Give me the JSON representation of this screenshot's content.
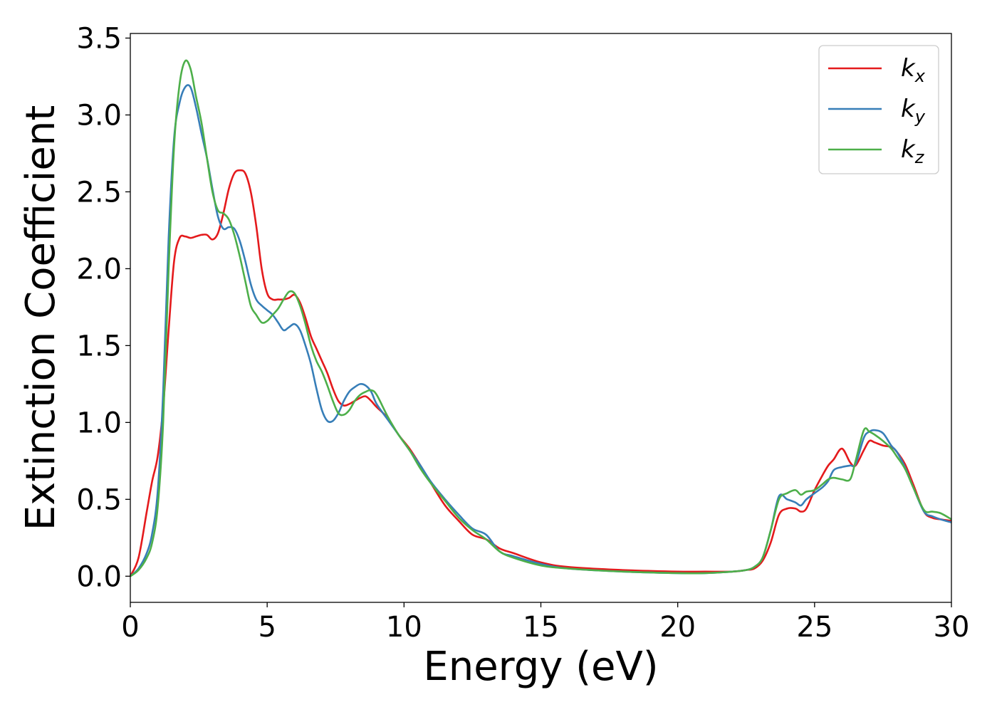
{
  "chart_data": {
    "type": "line",
    "xlabel": "Energy (eV)",
    "ylabel": "Extinction Coefficient",
    "xlim": [
      0,
      30
    ],
    "ylim": [
      -0.17,
      3.53
    ],
    "xticks": [
      0,
      5,
      10,
      15,
      20,
      25,
      30
    ],
    "yticks": [
      0.0,
      0.5,
      1.0,
      1.5,
      2.0,
      2.5,
      3.0,
      3.5
    ],
    "grid": false,
    "legend_position": "top-right",
    "series": [
      {
        "name": "k",
        "subscript": "x",
        "color": "#e41a1c",
        "x": [
          0,
          0.3,
          0.6,
          0.8,
          1.0,
          1.2,
          1.4,
          1.6,
          1.8,
          2.0,
          2.2,
          2.4,
          2.6,
          2.8,
          3.0,
          3.2,
          3.4,
          3.6,
          3.8,
          4.0,
          4.2,
          4.4,
          4.6,
          4.8,
          5.0,
          5.2,
          5.4,
          5.6,
          5.8,
          6.0,
          6.2,
          6.4,
          6.6,
          6.8,
          7.0,
          7.2,
          7.4,
          7.6,
          7.8,
          8.0,
          8.2,
          8.4,
          8.6,
          8.8,
          9.0,
          9.4,
          9.8,
          10.2,
          10.6,
          11.0,
          11.5,
          12.0,
          12.5,
          13.0,
          13.5,
          14.0,
          15.0,
          16.0,
          18.0,
          20.0,
          21.0,
          22.0,
          22.5,
          22.8,
          23.1,
          23.4,
          23.7,
          24.0,
          24.3,
          24.5,
          24.7,
          25.0,
          25.3,
          25.5,
          25.7,
          26.0,
          26.3,
          26.5,
          26.8,
          27.0,
          27.2,
          27.5,
          27.8,
          28.0,
          28.3,
          28.6,
          29.0,
          29.3,
          29.6,
          30.0
        ],
        "y": [
          0.0,
          0.12,
          0.42,
          0.62,
          0.78,
          1.1,
          1.6,
          2.05,
          2.2,
          2.21,
          2.2,
          2.21,
          2.22,
          2.22,
          2.19,
          2.23,
          2.36,
          2.52,
          2.62,
          2.64,
          2.62,
          2.5,
          2.28,
          2.0,
          1.84,
          1.8,
          1.8,
          1.8,
          1.81,
          1.83,
          1.78,
          1.68,
          1.56,
          1.48,
          1.4,
          1.32,
          1.22,
          1.14,
          1.11,
          1.12,
          1.14,
          1.16,
          1.17,
          1.14,
          1.1,
          1.03,
          0.92,
          0.83,
          0.72,
          0.6,
          0.46,
          0.36,
          0.27,
          0.24,
          0.18,
          0.15,
          0.09,
          0.06,
          0.04,
          0.03,
          0.03,
          0.03,
          0.04,
          0.05,
          0.1,
          0.22,
          0.4,
          0.44,
          0.44,
          0.42,
          0.44,
          0.56,
          0.66,
          0.72,
          0.76,
          0.83,
          0.74,
          0.72,
          0.82,
          0.88,
          0.87,
          0.85,
          0.84,
          0.81,
          0.73,
          0.6,
          0.42,
          0.38,
          0.37,
          0.36
        ]
      },
      {
        "name": "k",
        "subscript": "y",
        "color": "#377eb8",
        "x": [
          0,
          0.3,
          0.6,
          0.8,
          1.0,
          1.2,
          1.4,
          1.6,
          1.8,
          2.0,
          2.2,
          2.4,
          2.6,
          2.8,
          3.0,
          3.2,
          3.4,
          3.6,
          3.8,
          4.0,
          4.2,
          4.4,
          4.6,
          4.8,
          5.0,
          5.2,
          5.4,
          5.6,
          5.8,
          6.0,
          6.2,
          6.4,
          6.6,
          6.8,
          7.0,
          7.2,
          7.4,
          7.6,
          7.8,
          8.0,
          8.2,
          8.4,
          8.6,
          8.8,
          9.0,
          9.4,
          9.8,
          10.2,
          10.6,
          11.0,
          11.5,
          12.0,
          12.5,
          13.0,
          13.5,
          14.0,
          15.0,
          16.0,
          18.0,
          20.0,
          21.0,
          22.0,
          22.5,
          22.8,
          23.1,
          23.4,
          23.7,
          24.0,
          24.3,
          24.5,
          24.7,
          25.0,
          25.3,
          25.5,
          25.7,
          26.0,
          26.3,
          26.5,
          26.8,
          27.0,
          27.2,
          27.5,
          27.8,
          28.0,
          28.3,
          28.6,
          29.0,
          29.3,
          29.6,
          30.0
        ],
        "y": [
          0.0,
          0.05,
          0.15,
          0.28,
          0.55,
          1.2,
          2.2,
          2.85,
          3.08,
          3.18,
          3.18,
          3.05,
          2.88,
          2.72,
          2.52,
          2.34,
          2.26,
          2.27,
          2.26,
          2.18,
          2.05,
          1.9,
          1.8,
          1.76,
          1.73,
          1.7,
          1.65,
          1.6,
          1.62,
          1.64,
          1.6,
          1.5,
          1.38,
          1.22,
          1.08,
          1.01,
          1.01,
          1.06,
          1.14,
          1.2,
          1.23,
          1.25,
          1.24,
          1.2,
          1.12,
          1.02,
          0.92,
          0.82,
          0.72,
          0.61,
          0.5,
          0.4,
          0.31,
          0.27,
          0.16,
          0.13,
          0.08,
          0.05,
          0.03,
          0.02,
          0.02,
          0.03,
          0.04,
          0.06,
          0.12,
          0.3,
          0.52,
          0.5,
          0.48,
          0.46,
          0.5,
          0.54,
          0.58,
          0.62,
          0.69,
          0.71,
          0.72,
          0.73,
          0.9,
          0.94,
          0.95,
          0.93,
          0.85,
          0.81,
          0.71,
          0.58,
          0.42,
          0.39,
          0.37,
          0.35
        ]
      },
      {
        "name": "k",
        "subscript": "z",
        "color": "#4daf4a",
        "x": [
          0,
          0.3,
          0.6,
          0.8,
          1.0,
          1.2,
          1.4,
          1.6,
          1.8,
          2.0,
          2.2,
          2.4,
          2.6,
          2.8,
          3.0,
          3.2,
          3.4,
          3.6,
          3.8,
          4.0,
          4.2,
          4.4,
          4.6,
          4.8,
          5.0,
          5.2,
          5.4,
          5.6,
          5.8,
          6.0,
          6.2,
          6.4,
          6.6,
          6.8,
          7.0,
          7.2,
          7.4,
          7.6,
          7.8,
          8.0,
          8.2,
          8.4,
          8.6,
          8.8,
          9.0,
          9.4,
          9.8,
          10.2,
          10.6,
          11.0,
          11.5,
          12.0,
          12.5,
          13.0,
          13.5,
          14.0,
          15.0,
          16.0,
          18.0,
          20.0,
          21.0,
          22.0,
          22.5,
          22.8,
          23.1,
          23.4,
          23.7,
          24.0,
          24.3,
          24.5,
          24.7,
          25.0,
          25.3,
          25.5,
          25.7,
          26.0,
          26.3,
          26.5,
          26.8,
          27.0,
          27.2,
          27.5,
          27.8,
          28.0,
          28.3,
          28.6,
          29.0,
          29.3,
          29.6,
          30.0
        ],
        "y": [
          0.0,
          0.04,
          0.12,
          0.22,
          0.45,
          1.0,
          2.0,
          2.8,
          3.2,
          3.35,
          3.3,
          3.12,
          2.95,
          2.72,
          2.5,
          2.38,
          2.36,
          2.32,
          2.22,
          2.08,
          1.92,
          1.76,
          1.7,
          1.65,
          1.66,
          1.7,
          1.74,
          1.8,
          1.85,
          1.84,
          1.76,
          1.64,
          1.5,
          1.4,
          1.33,
          1.24,
          1.14,
          1.06,
          1.05,
          1.08,
          1.14,
          1.18,
          1.2,
          1.21,
          1.18,
          1.04,
          0.92,
          0.82,
          0.7,
          0.6,
          0.49,
          0.38,
          0.3,
          0.24,
          0.16,
          0.12,
          0.07,
          0.05,
          0.03,
          0.02,
          0.02,
          0.03,
          0.04,
          0.06,
          0.12,
          0.3,
          0.5,
          0.54,
          0.56,
          0.53,
          0.55,
          0.56,
          0.6,
          0.63,
          0.64,
          0.63,
          0.63,
          0.75,
          0.95,
          0.94,
          0.92,
          0.88,
          0.83,
          0.78,
          0.7,
          0.58,
          0.43,
          0.42,
          0.41,
          0.37
        ]
      }
    ]
  }
}
